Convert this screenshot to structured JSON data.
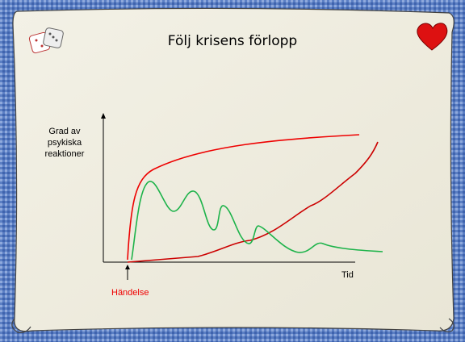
{
  "slide": {
    "title": "Följ krisens förlopp",
    "y_axis_label": [
      "Grad av",
      "psykiska",
      "reaktioner"
    ],
    "x_axis_label": "Tid",
    "event_label": "Händelse"
  }
}
